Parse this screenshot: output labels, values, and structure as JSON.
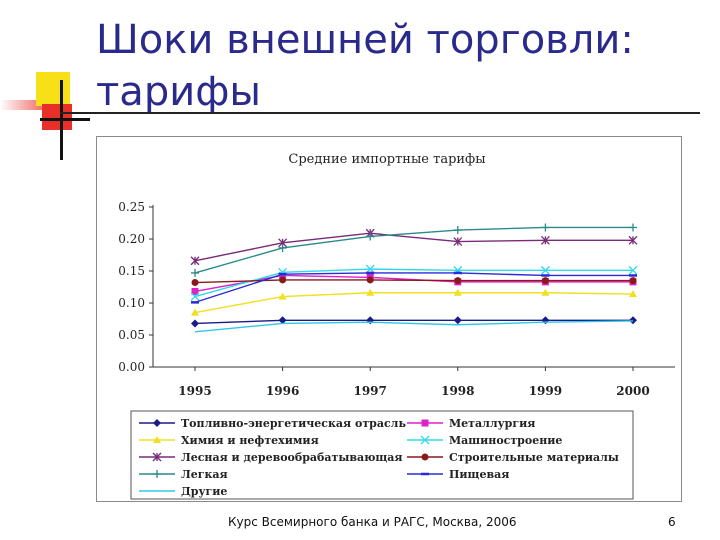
{
  "slide": {
    "title_line1": "Шоки внешней торговли:",
    "title_line2": "тарифы",
    "footer": "Курс Всемирного банка и РАГС, Москва, 2006",
    "page_number": "6"
  },
  "chart_data": {
    "type": "line",
    "title": "Средние импортные тарифы",
    "xlabel": "",
    "ylabel": "",
    "categories": [
      "1995",
      "1996",
      "1997",
      "1998",
      "1999",
      "2000"
    ],
    "ylim": [
      0,
      0.25
    ],
    "yticks": [
      "0.00",
      "0.05",
      "0.10",
      "0.15",
      "0.20",
      "0.25"
    ],
    "grid": false,
    "legend_position": "bottom",
    "series": [
      {
        "name": "Топливно-энергетическая отрасль",
        "values": [
          0.068,
          0.073,
          0.073,
          0.073,
          0.073,
          0.073
        ],
        "color": "#1a1a8c",
        "marker": "diamond"
      },
      {
        "name": "Металлургия",
        "values": [
          0.118,
          0.143,
          0.14,
          0.133,
          0.133,
          0.133
        ],
        "color": "#e020c8",
        "marker": "square"
      },
      {
        "name": "Химия и нефтехимия",
        "values": [
          0.085,
          0.11,
          0.116,
          0.116,
          0.116,
          0.114
        ],
        "color": "#f0e020",
        "marker": "triangle"
      },
      {
        "name": "Машиностроение",
        "values": [
          0.11,
          0.148,
          0.153,
          0.151,
          0.151,
          0.151
        ],
        "color": "#30d8e8",
        "marker": "x"
      },
      {
        "name": "Лесная и деревообрабатывающая",
        "values": [
          0.166,
          0.194,
          0.209,
          0.196,
          0.198,
          0.198
        ],
        "color": "#7a2a78",
        "marker": "star"
      },
      {
        "name": "Строительные материалы",
        "values": [
          0.132,
          0.136,
          0.136,
          0.135,
          0.135,
          0.135
        ],
        "color": "#8a1a1a",
        "marker": "circle"
      },
      {
        "name": "Легкая",
        "values": [
          0.147,
          0.186,
          0.204,
          0.214,
          0.218,
          0.218
        ],
        "color": "#2a8a8a",
        "marker": "plus"
      },
      {
        "name": "Пищевая",
        "values": [
          0.101,
          0.145,
          0.147,
          0.147,
          0.143,
          0.143
        ],
        "color": "#2a2ad8",
        "marker": "dash"
      },
      {
        "name": "Другие",
        "values": [
          0.055,
          0.068,
          0.07,
          0.066,
          0.07,
          0.072
        ],
        "color": "#30c8e8",
        "marker": "none"
      }
    ]
  }
}
